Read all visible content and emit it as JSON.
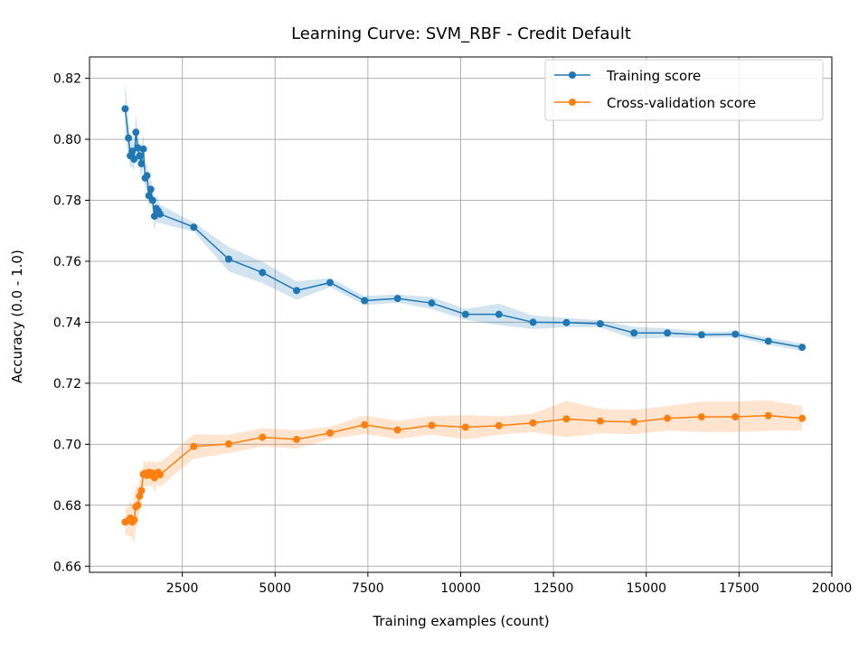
{
  "chart_data": {
    "type": "line",
    "title": "Learning Curve: SVM_RBF - Credit Default",
    "xlabel": "Training examples (count)",
    "ylabel": "Accuracy (0.0 - 1.0)",
    "xlim": [
      0,
      20000
    ],
    "ylim": [
      0.658,
      0.827
    ],
    "xticks": [
      2500,
      5000,
      7500,
      10000,
      12500,
      15000,
      17500,
      20000
    ],
    "xtick_labels": [
      "2500",
      "5000",
      "7500",
      "10000",
      "12500",
      "15000",
      "17500",
      "20000"
    ],
    "yticks": [
      0.66,
      0.68,
      0.7,
      0.72,
      0.74,
      0.76,
      0.78,
      0.8,
      0.82
    ],
    "ytick_labels": [
      "0.66",
      "0.68",
      "0.70",
      "0.72",
      "0.74",
      "0.76",
      "0.78",
      "0.80",
      "0.82"
    ],
    "grid": true,
    "legend_position": "top-right",
    "x": [
      960,
      1050,
      1100,
      1150,
      1200,
      1250,
      1300,
      1350,
      1400,
      1450,
      1500,
      1550,
      1600,
      1650,
      1700,
      1750,
      1800,
      1850,
      1900,
      2810,
      3750,
      4660,
      5580,
      6480,
      7410,
      8300,
      9220,
      10130,
      11030,
      11950,
      12850,
      13760,
      14670,
      15570,
      16490,
      17400,
      18290,
      19200
    ],
    "series": [
      {
        "name": "Training score",
        "color": "#1f77b4",
        "values": [
          0.81,
          0.8004,
          0.7946,
          0.7961,
          0.7935,
          0.8023,
          0.7972,
          0.7946,
          0.792,
          0.7968,
          0.7873,
          0.7881,
          0.7815,
          0.7836,
          0.78,
          0.7748,
          0.7773,
          0.7765,
          0.7755,
          0.7712,
          0.7607,
          0.7563,
          0.7504,
          0.753,
          0.7471,
          0.7478,
          0.7463,
          0.7426,
          0.7426,
          0.74,
          0.7399,
          0.7395,
          0.7365,
          0.7365,
          0.7359,
          0.7361,
          0.7338,
          0.7318
        ],
        "std": [
          0.009,
          0.006,
          0.004,
          0.005,
          0.004,
          0.006,
          0.005,
          0.004,
          0.005,
          0.005,
          0.004,
          0.004,
          0.004,
          0.004,
          0.004,
          0.005,
          0.004,
          0.004,
          0.003,
          0.0015,
          0.004,
          0.0035,
          0.003,
          0.0015,
          0.0015,
          0.0013,
          0.002,
          0.0018,
          0.0035,
          0.0022,
          0.0015,
          0.0012,
          0.002,
          0.0015,
          0.001,
          0.001,
          0.0012,
          0.0012
        ]
      },
      {
        "name": "Cross-validation score",
        "color": "#ff7f0e",
        "values": [
          0.6745,
          0.675,
          0.6758,
          0.6745,
          0.6752,
          0.6795,
          0.68,
          0.683,
          0.6848,
          0.6902,
          0.6905,
          0.6898,
          0.6908,
          0.69,
          0.6905,
          0.689,
          0.69,
          0.6908,
          0.69,
          0.6993,
          0.7001,
          0.7023,
          0.7016,
          0.7037,
          0.7064,
          0.7047,
          0.7062,
          0.7056,
          0.7061,
          0.707,
          0.7083,
          0.7076,
          0.7073,
          0.7085,
          0.709,
          0.709,
          0.7094,
          0.7085
        ],
        "std": [
          0.004,
          0.005,
          0.006,
          0.005,
          0.008,
          0.007,
          0.006,
          0.005,
          0.005,
          0.004,
          0.004,
          0.004,
          0.004,
          0.004,
          0.004,
          0.005,
          0.004,
          0.004,
          0.004,
          0.004,
          0.003,
          0.003,
          0.003,
          0.002,
          0.003,
          0.003,
          0.003,
          0.004,
          0.003,
          0.003,
          0.006,
          0.004,
          0.004,
          0.004,
          0.005,
          0.005,
          0.005,
          0.004
        ]
      }
    ]
  }
}
